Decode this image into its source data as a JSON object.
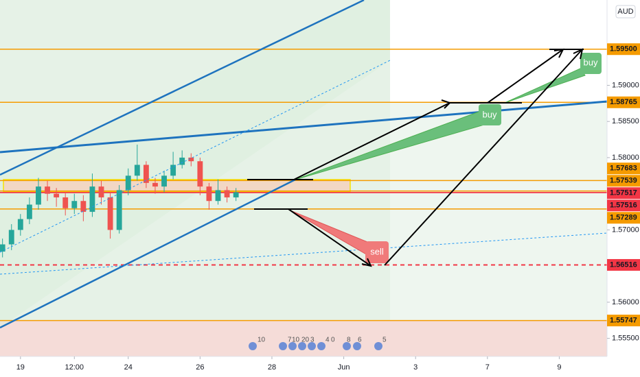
{
  "chart_data": {
    "type": "candlestick",
    "currency": "AUD",
    "x": [
      -0.5,
      -0.25,
      0,
      0.25,
      0.5,
      0.75,
      1,
      1.25,
      1.5,
      1.75,
      2,
      2.25,
      2.5,
      2.75,
      3,
      3.25,
      3.5,
      3.75,
      4,
      4.25,
      4.5,
      4.75,
      5,
      5.25,
      5.5,
      5.75,
      6
    ],
    "open": [
      1.567,
      1.568,
      1.57,
      1.5715,
      1.5735,
      1.576,
      1.575,
      1.5745,
      1.573,
      1.574,
      1.5725,
      1.576,
      1.5745,
      1.57,
      1.5755,
      1.5775,
      1.579,
      1.5765,
      1.576,
      1.5775,
      1.579,
      1.58,
      1.5795,
      1.576,
      1.574,
      1.5755,
      1.5745
    ],
    "high": [
      1.5688,
      1.5708,
      1.5722,
      1.5745,
      1.5772,
      1.5768,
      1.5758,
      1.5752,
      1.575,
      1.5748,
      1.5778,
      1.5768,
      1.5752,
      1.5762,
      1.5785,
      1.5818,
      1.5795,
      1.5772,
      1.5782,
      1.5808,
      1.581,
      1.5806,
      1.58,
      1.5765,
      1.577,
      1.576,
      1.5758
    ],
    "low": [
      1.5662,
      1.5672,
      1.5692,
      1.5708,
      1.5728,
      1.574,
      1.5732,
      1.572,
      1.5722,
      1.5712,
      1.5718,
      1.5735,
      1.5688,
      1.5695,
      1.5748,
      1.5768,
      1.5758,
      1.575,
      1.5752,
      1.577,
      1.5785,
      1.5788,
      1.5748,
      1.5728,
      1.5735,
      1.5738,
      1.574
    ],
    "close": [
      1.568,
      1.57,
      1.5715,
      1.5735,
      1.576,
      1.575,
      1.5745,
      1.573,
      1.574,
      1.5725,
      1.576,
      1.5745,
      1.57,
      1.5755,
      1.5775,
      1.579,
      1.5765,
      1.576,
      1.5775,
      1.579,
      1.58,
      1.5795,
      1.576,
      1.574,
      1.5755,
      1.5745,
      1.5752
    ],
    "up_color": "#26a69a",
    "down_color": "#ef5350",
    "xlim": [
      -0.57,
      16.33
    ],
    "xticks": [
      {
        "value": 0,
        "label": "19"
      },
      {
        "value": 1.5,
        "label": "12:00"
      },
      {
        "value": 3,
        "label": "24"
      },
      {
        "value": 5,
        "label": "26"
      },
      {
        "value": 7,
        "label": "28"
      },
      {
        "value": 9,
        "label": "Jun"
      },
      {
        "value": 11,
        "label": "3"
      },
      {
        "value": 13,
        "label": "7"
      },
      {
        "value": 15,
        "label": "9"
      }
    ],
    "ylim": [
      1.5525,
      1.6018
    ],
    "yticks": [
      {
        "value": 1.555,
        "label": "1.55500"
      },
      {
        "value": 1.56,
        "label": "1.56000"
      },
      {
        "value": 1.57,
        "label": "1.57000"
      },
      {
        "value": 1.58,
        "label": "1.58000"
      },
      {
        "value": 1.585,
        "label": "1.58500"
      },
      {
        "value": 1.59,
        "label": "1.59000"
      }
    ],
    "grid": false,
    "levels": [
      {
        "value": 1.595,
        "label": "1.59500",
        "color": "#f59b00",
        "label_color": "#131722"
      },
      {
        "value": 1.58765,
        "label": "1.58765",
        "color": "#f59b00",
        "label_color": "#131722"
      },
      {
        "value": 1.57683,
        "label": "1.57683",
        "color": "#f59b00",
        "label_color": "#131722"
      },
      {
        "value": 1.57539,
        "label": "1.57539",
        "color": "#f59b00",
        "label_color": "#131722"
      },
      {
        "value": 1.57517,
        "label": "1.57517",
        "color": "#f23645",
        "label_color": "#ffffff"
      },
      {
        "value": 1.57516,
        "label": "1.57516",
        "color": "#f23645",
        "label_color": "#ffffff"
      },
      {
        "value": 1.57289,
        "label": "1.57289",
        "color": "#f59b00",
        "label_color": "#131722"
      },
      {
        "value": 1.56516,
        "label": "1.56516",
        "color": "#f23645",
        "label_color": "#ffffff",
        "dashed": true
      },
      {
        "value": 1.55747,
        "label": "1.55747",
        "color": "#f59b00",
        "label_color": "#131722"
      }
    ],
    "annotations": [
      "buy",
      "buy",
      "sell"
    ],
    "events": [
      10,
      7,
      10,
      20,
      3,
      4,
      0,
      8,
      6,
      5
    ]
  }
}
